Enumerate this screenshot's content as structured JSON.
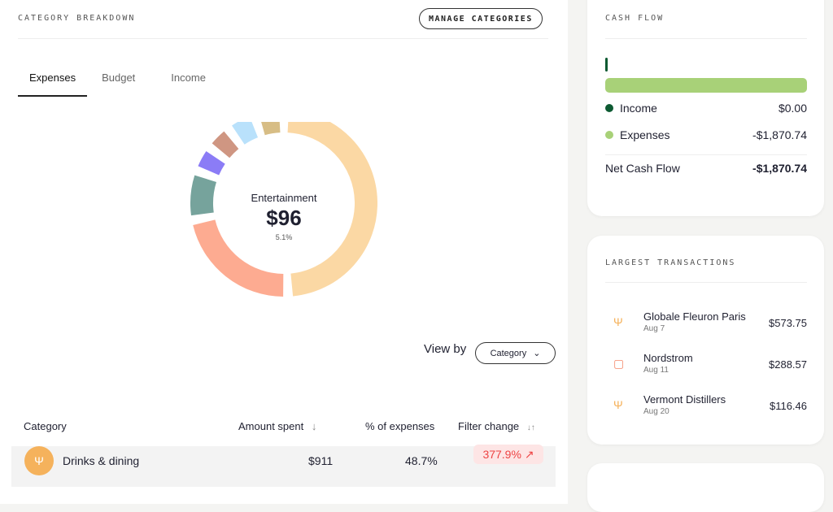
{
  "category_breakdown": {
    "title": "CATEGORY BREAKDOWN",
    "manage_label": "MANAGE CATEGORIES",
    "tabs": [
      {
        "label": "Expenses",
        "active": true
      },
      {
        "label": "Budget"
      },
      {
        "label": "Income"
      }
    ],
    "donut": {
      "center_name": "Entertainment",
      "center_amount": "$96",
      "center_percent": "5.1%",
      "segments": [
        {
          "color": "#fbd8a4",
          "percent": 48.7
        },
        {
          "color": "#fdab91",
          "percent": 22.5
        },
        {
          "color": "#76a39c",
          "percent": 8.5
        },
        {
          "color": "#8b7cf6",
          "percent": 4.5
        },
        {
          "color": "#cf9682",
          "percent": 4.5
        },
        {
          "color": "#b9e1fb",
          "percent": 5.0
        },
        {
          "color": "#d7bd85",
          "percent": 5.1
        }
      ]
    },
    "view_by_label": "View by",
    "view_by_value": "Category",
    "table": {
      "headers": [
        "Category",
        "Amount spent",
        "% of expenses",
        "Filter change"
      ],
      "rows": [
        {
          "icon": "fork-knife-icon",
          "category": "Drinks & dining",
          "amount": "$911",
          "percent": "48.7%",
          "change": "377.9%"
        }
      ]
    }
  },
  "cash_flow": {
    "title": "CASH FLOW",
    "income_label": "Income",
    "income_value": "$0.00",
    "income_color": "#0d5a32",
    "expenses_label": "Expenses",
    "expenses_value": "-$1,870.74",
    "expenses_color": "#a8d178",
    "net_label": "Net Cash Flow",
    "net_value": "-$1,870.74"
  },
  "largest_transactions": {
    "title": "LARGEST TRANSACTIONS",
    "items": [
      {
        "icon": "fork-knife-icon",
        "name": "Globale Fleuron Paris",
        "date": "Aug 7",
        "amount": "$573.75"
      },
      {
        "icon": "shopping-bag-icon",
        "name": "Nordstrom",
        "date": "Aug 11",
        "amount": "$288.57"
      },
      {
        "icon": "fork-knife-icon",
        "name": "Vermont Distillers",
        "date": "Aug 20",
        "amount": "$116.46"
      }
    ]
  }
}
